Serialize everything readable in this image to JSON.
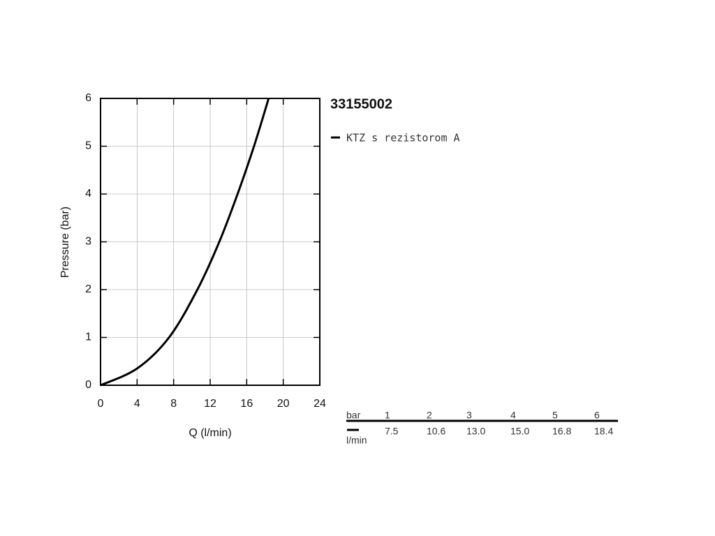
{
  "chart_data": {
    "type": "line",
    "title": "33155002",
    "xlabel": "Q (l/min)",
    "ylabel": "Pressure (bar)",
    "x": [
      0,
      4,
      7.5,
      10.6,
      13,
      15,
      16.8,
      18.4
    ],
    "series": [
      {
        "name": "KTZ s rezistorom A",
        "color": "#000000",
        "values": [
          0,
          0.35,
          1,
          2,
          3,
          4,
          5,
          6
        ]
      }
    ],
    "xlim": [
      0,
      24
    ],
    "xticks": [
      0,
      4,
      8,
      12,
      16,
      20,
      24
    ],
    "ylim": [
      0,
      6
    ],
    "yticks": [
      0,
      1,
      2,
      3,
      4,
      5,
      6
    ],
    "grid": true
  },
  "table": {
    "row_label": "bar",
    "unit_label": "l/min",
    "pressures": [
      "1",
      "2",
      "3",
      "4",
      "5",
      "6"
    ],
    "flows": [
      "7.5",
      "10.6",
      "13.0",
      "15.0",
      "16.8",
      "18.4"
    ]
  }
}
